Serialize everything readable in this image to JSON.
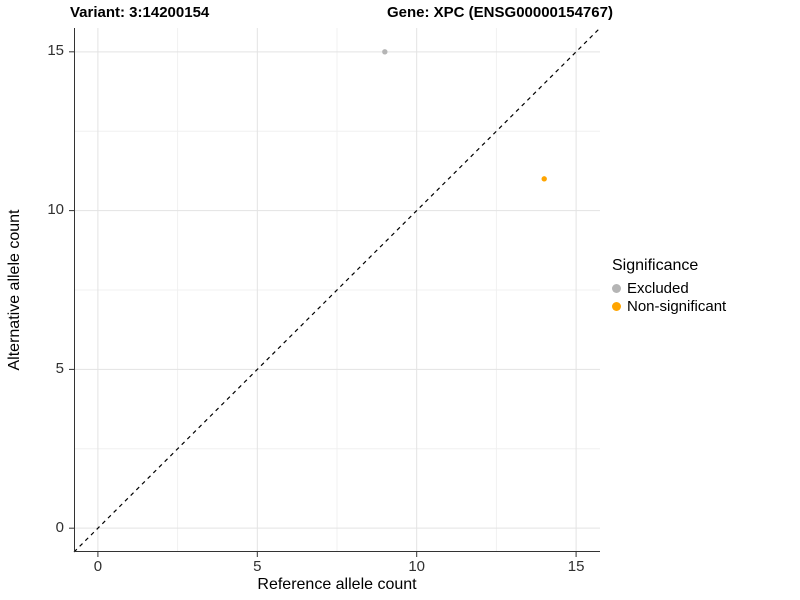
{
  "chart_data": {
    "type": "scatter",
    "title_left": "Variant: 3:14200154",
    "title_right": "Gene: XPC (ENSG00000154767)",
    "xlabel": "Reference allele count",
    "ylabel": "Alternative allele count",
    "xlim": [
      -0.75,
      15.75
    ],
    "ylim": [
      -0.75,
      15.75
    ],
    "x_ticks": [
      0,
      5,
      10,
      15
    ],
    "y_ticks": [
      0,
      5,
      10,
      15
    ],
    "x_minor_gridlines": [
      2.5,
      7.5,
      12.5
    ],
    "y_minor_gridlines": [
      2.5,
      7.5,
      12.5
    ],
    "grid": "major+minor",
    "reference_line": {
      "type": "identity",
      "style": "dashed",
      "color": "#000000"
    },
    "series": [
      {
        "name": "Excluded",
        "color": "#B5B5B5",
        "points": [
          [
            9,
            15
          ]
        ]
      },
      {
        "name": "Non-significant",
        "color": "#FFA500",
        "points": [
          [
            14,
            11
          ]
        ]
      }
    ],
    "legend": {
      "title": "Significance",
      "position": "right"
    },
    "colors": {
      "axis": "#333333",
      "grid_major": "#E3E3E3",
      "grid_minor": "#F0F0F0",
      "background": "#FFFFFF"
    }
  }
}
